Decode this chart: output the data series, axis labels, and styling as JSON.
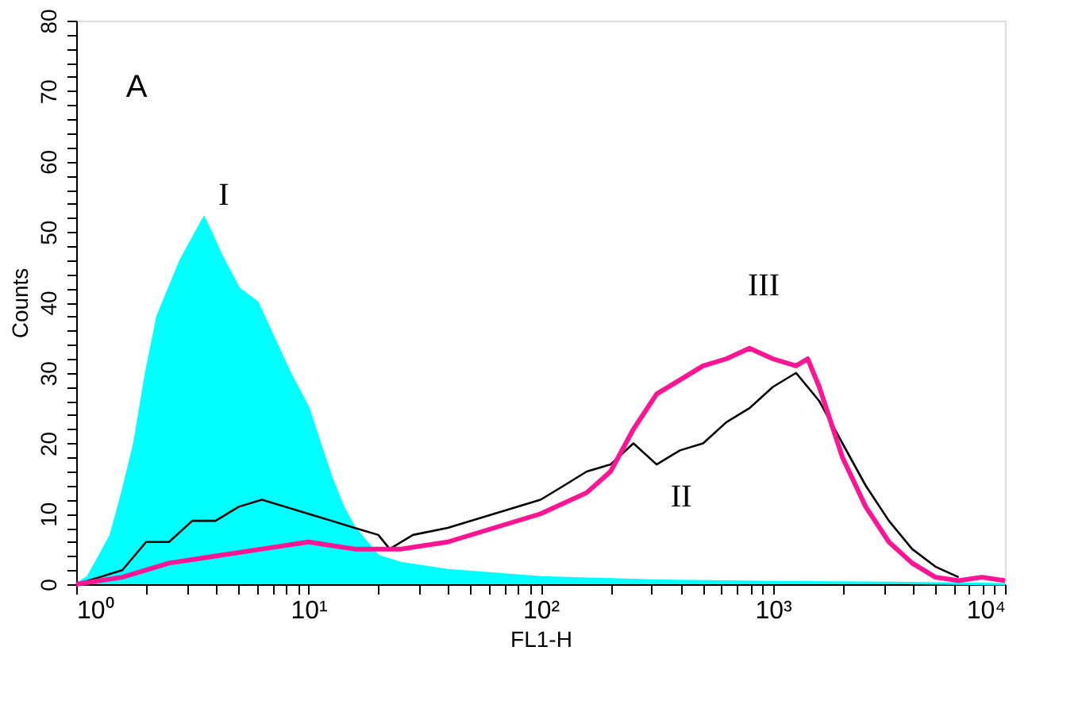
{
  "chart_data": {
    "type": "line",
    "xlabel": "FL1-H",
    "ylabel": "Counts",
    "log": "x",
    "grid": false,
    "legend": false,
    "marker": "none",
    "line_style": "solid",
    "xlim": [
      1,
      10000
    ],
    "ylim": [
      0,
      80
    ],
    "xticks": [
      {
        "value": 1,
        "label": "10⁰"
      },
      {
        "value": 2,
        "label": null
      },
      {
        "value": 3,
        "label": null
      },
      {
        "value": 4,
        "label": null
      },
      {
        "value": 5,
        "label": null
      },
      {
        "value": 6,
        "label": null
      },
      {
        "value": 7,
        "label": null
      },
      {
        "value": 8,
        "label": null
      },
      {
        "value": 9,
        "label": null
      },
      {
        "value": 10,
        "label": "10¹"
      },
      {
        "value": 20,
        "label": null
      },
      {
        "value": 30,
        "label": null
      },
      {
        "value": 40,
        "label": null
      },
      {
        "value": 50,
        "label": null
      },
      {
        "value": 60,
        "label": null
      },
      {
        "value": 70,
        "label": null
      },
      {
        "value": 80,
        "label": null
      },
      {
        "value": 90,
        "label": null
      },
      {
        "value": 100,
        "label": "10²"
      },
      {
        "value": 200,
        "label": null
      },
      {
        "value": 300,
        "label": null
      },
      {
        "value": 400,
        "label": null
      },
      {
        "value": 500,
        "label": null
      },
      {
        "value": 600,
        "label": null
      },
      {
        "value": 700,
        "label": null
      },
      {
        "value": 800,
        "label": null
      },
      {
        "value": 900,
        "label": null
      },
      {
        "value": 1000,
        "label": "10³"
      },
      {
        "value": 2000,
        "label": null
      },
      {
        "value": 3000,
        "label": null
      },
      {
        "value": 4000,
        "label": null
      },
      {
        "value": 5000,
        "label": null
      },
      {
        "value": 6000,
        "label": null
      },
      {
        "value": 7000,
        "label": null
      },
      {
        "value": 8000,
        "label": null
      },
      {
        "value": 9000,
        "label": null
      },
      {
        "value": 10000,
        "label": "10⁴"
      }
    ],
    "yticks": [
      0,
      {
        "value": 2,
        "label": null
      },
      {
        "value": 4,
        "label": null
      },
      {
        "value": 6,
        "label": null
      },
      {
        "value": 8,
        "label": null
      },
      10,
      {
        "value": 12,
        "label": null
      },
      {
        "value": 14,
        "label": null
      },
      {
        "value": 16,
        "label": null
      },
      {
        "value": 18,
        "label": null
      },
      20,
      {
        "value": 22,
        "label": null
      },
      {
        "value": 24,
        "label": null
      },
      {
        "value": 26,
        "label": null
      },
      {
        "value": 28,
        "label": null
      },
      30,
      {
        "value": 32,
        "label": null
      },
      {
        "value": 34,
        "label": null
      },
      {
        "value": 36,
        "label": null
      },
      {
        "value": 38,
        "label": null
      },
      40,
      {
        "value": 42,
        "label": null
      },
      {
        "value": 44,
        "label": null
      },
      {
        "value": 46,
        "label": null
      },
      {
        "value": 48,
        "label": null
      },
      50,
      {
        "value": 52,
        "label": null
      },
      {
        "value": 54,
        "label": null
      },
      {
        "value": 56,
        "label": null
      },
      {
        "value": 58,
        "label": null
      },
      60,
      {
        "value": 62,
        "label": null
      },
      {
        "value": 64,
        "label": null
      },
      {
        "value": 66,
        "label": null
      },
      {
        "value": 68,
        "label": null
      },
      70,
      {
        "value": 72,
        "label": null
      },
      {
        "value": 74,
        "label": null
      },
      {
        "value": 76,
        "label": null
      },
      {
        "value": 78,
        "label": null
      },
      80
    ],
    "series": [
      {
        "type": "area",
        "color": "#00ffff",
        "x": [
          1,
          1.12,
          1.26,
          1.41,
          1.58,
          1.78,
          2.0,
          2.24,
          2.51,
          2.82,
          3.16,
          3.55,
          3.8,
          4.17,
          5.01,
          6.03,
          7.08,
          8.32,
          10,
          11.2,
          12.6,
          14.1,
          15.8,
          20,
          25.1,
          39.8,
          63.1,
          100,
          316,
          1000,
          3162,
          10000
        ],
        "values": [
          0,
          1,
          4,
          7,
          13,
          20,
          30,
          38,
          42,
          46,
          49,
          52,
          50,
          47,
          42,
          40,
          35,
          30,
          25,
          20,
          15,
          11,
          8,
          4,
          3,
          2,
          1.5,
          1,
          0.5,
          0.3,
          0.2,
          0
        ]
      },
      {
        "color": "#000000",
        "x": [
          1,
          1.26,
          1.58,
          2.0,
          2.51,
          3.16,
          3.98,
          5.01,
          6.31,
          7.94,
          10,
          12.6,
          15.8,
          20,
          22.4,
          28.2,
          39.8,
          63.1,
          100,
          126,
          158,
          200,
          251,
          316,
          398,
          501,
          631,
          794,
          1000,
          1259,
          1585,
          1995,
          2512,
          3162,
          3981,
          5012,
          6310
        ],
        "values": [
          0,
          1,
          2,
          6,
          6,
          9,
          9,
          11,
          12,
          11,
          10,
          9,
          8,
          7,
          5,
          7,
          8,
          10,
          12,
          14,
          16,
          17,
          20,
          17,
          19,
          20,
          23,
          25,
          28,
          30,
          26,
          20,
          14,
          9,
          5,
          2.5,
          1
        ]
      },
      {
        "color": "#ff1493",
        "x": [
          1,
          1.58,
          2.51,
          3.98,
          6.31,
          10,
          15.8,
          25.1,
          39.8,
          63.1,
          100,
          158,
          200,
          251,
          316,
          398,
          501,
          631,
          794,
          1000,
          1259,
          1413,
          1585,
          1995,
          2512,
          3162,
          3981,
          5012,
          6310,
          7943,
          10000
        ],
        "values": [
          0,
          1,
          3,
          4,
          5,
          6,
          5,
          5,
          6,
          8,
          10,
          13,
          16,
          22,
          27,
          29,
          31,
          32,
          33.5,
          32,
          31,
          32,
          28,
          18,
          11,
          6,
          3,
          1,
          0.5,
          1,
          0.5
        ]
      }
    ],
    "annotations": [
      "A",
      "I",
      "II",
      "III"
    ]
  }
}
